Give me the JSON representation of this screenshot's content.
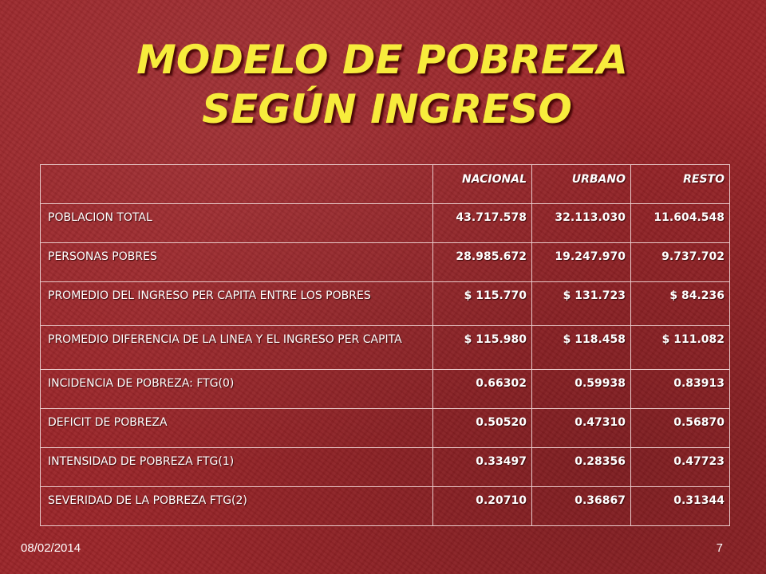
{
  "slide": {
    "title_line1": "MODELO DE POBREZA",
    "title_line2": "SEGÚN INGRESO",
    "date": "08/02/2014",
    "page_number": "7"
  },
  "table": {
    "headers": [
      "",
      "NACIONAL",
      "URBANO",
      "RESTO"
    ],
    "rows": [
      {
        "label": "POBLACION TOTAL",
        "values": [
          "43.717.578",
          "32.113.030",
          "11.604.548"
        ]
      },
      {
        "label": "PERSONAS POBRES",
        "values": [
          "28.985.672",
          "19.247.970",
          "9.737.702"
        ]
      },
      {
        "label": "PROMEDIO DEL INGRESO PER CAPITA ENTRE  LOS POBRES",
        "values": [
          "$ 115.770",
          "$ 131.723",
          "$ 84.236"
        ]
      },
      {
        "label": "PROMEDIO DIFERENCIA DE LA LINEA Y EL INGRESO PER CAPITA",
        "values": [
          "$ 115.980",
          "$ 118.458",
          "$ 111.082"
        ]
      },
      {
        "label": "INCIDENCIA DE POBREZA: FTG(0)",
        "values": [
          "0.66302",
          "0.59938",
          "0.83913"
        ]
      },
      {
        "label": "DEFICIT DE POBREZA",
        "values": [
          "0.50520",
          "0.47310",
          "0.56870"
        ]
      },
      {
        "label": "INTENSIDAD DE POBREZA FTG(1)",
        "values": [
          "0.33497",
          "0.28356",
          "0.47723"
        ]
      },
      {
        "label": "SEVERIDAD DE LA POBREZA FTG(2)",
        "values": [
          "0.20710",
          "0.36867",
          "0.31344"
        ]
      }
    ]
  },
  "colors": {
    "background": "#9a2428",
    "title": "#f7ec3c",
    "text": "#ffffff",
    "table_border": "#e9c9c9"
  }
}
